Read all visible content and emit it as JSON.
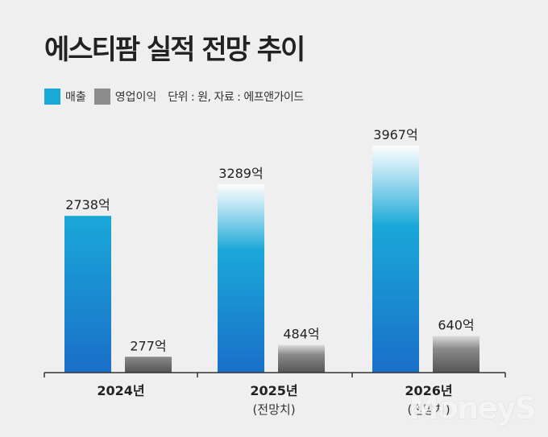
{
  "title": "에스티팜 실적 전망 추이",
  "legend": {
    "revenue_label": "매출",
    "op_label": "영업이익",
    "note": "단위 : 원, 자료 : 에프앤가이드"
  },
  "colors": {
    "revenue": "#1aa8d8",
    "revenue_dark": "#1a6fc9",
    "op": "#8a8a8a",
    "op_dark": "#555555"
  },
  "chart_data": {
    "type": "bar",
    "categories": [
      "2024년",
      "2025년",
      "2026년"
    ],
    "category_sublabels": [
      "",
      "(전망치)",
      "(전망치)"
    ],
    "series": [
      {
        "name": "매출",
        "values": [
          2738,
          3289,
          3967
        ],
        "labels": [
          "2738억",
          "3289억",
          "3967억"
        ]
      },
      {
        "name": "영업이익",
        "values": [
          277,
          484,
          640
        ],
        "labels": [
          "277억",
          "484억",
          "640억"
        ]
      }
    ],
    "unit": "억",
    "ylim": [
      0,
      4400
    ],
    "grid": false,
    "legend_position": "top-left"
  },
  "watermark": "MoneyS"
}
